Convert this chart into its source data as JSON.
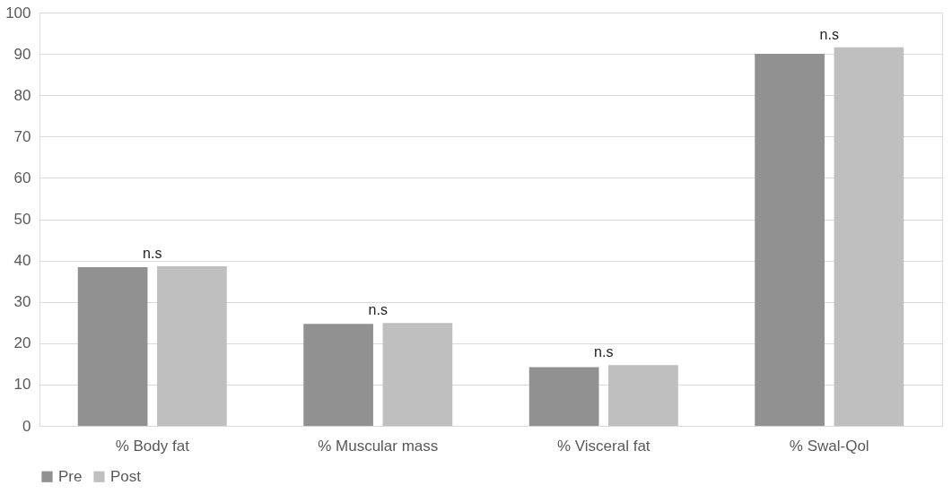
{
  "chart_data": {
    "type": "bar",
    "categories": [
      "% Body fat",
      "% Muscular mass",
      "% Visceral fat",
      "% Swal-Qol"
    ],
    "series": [
      {
        "name": "Pre",
        "color": "#919191",
        "values": [
          38.4,
          24.7,
          14.2,
          90.0
        ]
      },
      {
        "name": "Post",
        "color": "#bfbfbf",
        "values": [
          38.6,
          24.9,
          14.7,
          91.6
        ]
      }
    ],
    "ylim": [
      0,
      100
    ],
    "yticks": [
      0,
      10,
      20,
      30,
      40,
      50,
      60,
      70,
      80,
      90,
      100
    ],
    "grid": "y",
    "legend": "bottom",
    "annotations": [
      "n.s",
      "n.s",
      "n.s",
      "n.s"
    ]
  }
}
